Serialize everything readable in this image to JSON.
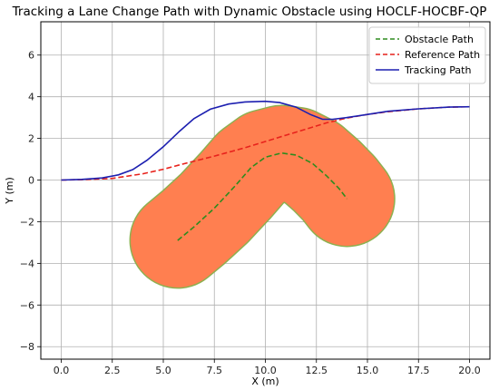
{
  "chart_data": {
    "type": "line",
    "title": "Tracking a Lane Change Path with Dynamic Obstacle using HOCLF-HOCBF-QP",
    "xlabel": "X (m)",
    "ylabel": "Y (m)",
    "xlim": [
      -1.0,
      21.0
    ],
    "ylim": [
      -8.6,
      7.6
    ],
    "xticks": [
      0.0,
      2.5,
      5.0,
      7.5,
      10.0,
      12.5,
      15.0,
      17.5,
      20.0
    ],
    "xtick_labels": [
      "0.0",
      "2.5",
      "5.0",
      "7.5",
      "10.0",
      "12.5",
      "15.0",
      "17.5",
      "20.0"
    ],
    "yticks": [
      6,
      4,
      2,
      0,
      -2,
      -4,
      -6,
      -8
    ],
    "ytick_labels": [
      "6",
      "4",
      "2",
      "0",
      "−2",
      "−4",
      "−6",
      "−8"
    ],
    "grid": true,
    "legend_position": "top-right",
    "obstacle_region": {
      "color": "#ff7f50",
      "edge_color": "#8db050",
      "radius": 2.3
    },
    "series": [
      {
        "name": "Obstacle Path",
        "color": "#2e8b1e",
        "style": "dashed",
        "points": [
          [
            5.7,
            -2.9
          ],
          [
            6.5,
            -2.25
          ],
          [
            7.5,
            -1.35
          ],
          [
            8.5,
            -0.3
          ],
          [
            9.3,
            0.6
          ],
          [
            10.0,
            1.1
          ],
          [
            10.8,
            1.3
          ],
          [
            11.5,
            1.2
          ],
          [
            12.3,
            0.8
          ],
          [
            13.0,
            0.2
          ],
          [
            13.6,
            -0.4
          ],
          [
            14.0,
            -0.9
          ]
        ]
      },
      {
        "name": "Reference Path",
        "color": "#e8221c",
        "style": "dashed",
        "points": [
          [
            0.0,
            0.0
          ],
          [
            1.0,
            0.02
          ],
          [
            2.5,
            0.08
          ],
          [
            4.0,
            0.3
          ],
          [
            5.0,
            0.52
          ],
          [
            6.0,
            0.78
          ],
          [
            7.5,
            1.15
          ],
          [
            9.0,
            1.55
          ],
          [
            10.0,
            1.85
          ],
          [
            11.0,
            2.15
          ],
          [
            12.0,
            2.45
          ],
          [
            13.0,
            2.75
          ],
          [
            14.0,
            2.98
          ],
          [
            15.0,
            3.15
          ],
          [
            16.0,
            3.28
          ],
          [
            17.5,
            3.42
          ],
          [
            19.0,
            3.5
          ],
          [
            20.0,
            3.52
          ]
        ]
      },
      {
        "name": "Tracking Path",
        "color": "#1c1fb0",
        "style": "solid",
        "points": [
          [
            0.0,
            0.0
          ],
          [
            1.0,
            0.03
          ],
          [
            2.0,
            0.1
          ],
          [
            2.8,
            0.25
          ],
          [
            3.5,
            0.5
          ],
          [
            4.2,
            0.95
          ],
          [
            5.0,
            1.6
          ],
          [
            5.8,
            2.35
          ],
          [
            6.5,
            2.95
          ],
          [
            7.3,
            3.4
          ],
          [
            8.2,
            3.65
          ],
          [
            9.0,
            3.75
          ],
          [
            10.0,
            3.78
          ],
          [
            10.7,
            3.72
          ],
          [
            11.5,
            3.5
          ],
          [
            12.2,
            3.15
          ],
          [
            12.8,
            2.92
          ],
          [
            13.3,
            2.92
          ],
          [
            14.0,
            3.0
          ],
          [
            15.0,
            3.15
          ],
          [
            16.0,
            3.3
          ],
          [
            17.5,
            3.42
          ],
          [
            19.0,
            3.5
          ],
          [
            20.0,
            3.52
          ]
        ]
      }
    ]
  }
}
